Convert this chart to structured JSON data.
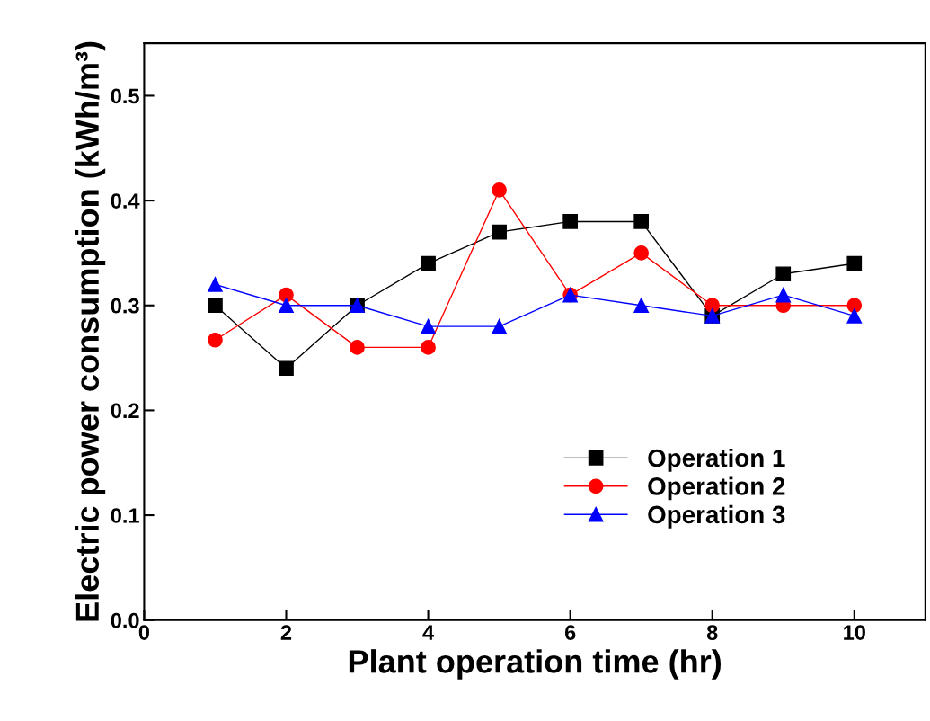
{
  "chart_data": {
    "type": "line",
    "xlabel": "Plant operation time (hr)",
    "ylabel": "Electric power consumption (kWh/m³)",
    "x": [
      1,
      2,
      3,
      4,
      5,
      6,
      7,
      8,
      9,
      10
    ],
    "series": [
      {
        "name": "Operation 1",
        "color": "#000000",
        "marker": "square",
        "values": [
          0.3,
          0.24,
          0.3,
          0.34,
          0.37,
          0.38,
          0.38,
          0.29,
          0.33,
          0.34
        ]
      },
      {
        "name": "Operation 2",
        "color": "#ff0000",
        "marker": "circle",
        "values": [
          0.267,
          0.31,
          0.26,
          0.26,
          0.41,
          0.31,
          0.35,
          0.3,
          0.3,
          0.3
        ]
      },
      {
        "name": "Operation 3",
        "color": "#0000ff",
        "marker": "triangle",
        "values": [
          0.32,
          0.3,
          0.3,
          0.28,
          0.28,
          0.31,
          0.3,
          0.29,
          0.31,
          0.29
        ]
      }
    ],
    "xlim": [
      0,
      11
    ],
    "xticks": [
      0,
      2,
      4,
      6,
      8,
      10
    ],
    "ylim": [
      0,
      0.55
    ],
    "yticks": [
      {
        "value": 0,
        "label": "0.0"
      },
      0.1,
      0.2,
      0.3,
      0.4,
      0.5
    ],
    "legend": "bottom right",
    "grid": false,
    "line_style": "solid"
  }
}
